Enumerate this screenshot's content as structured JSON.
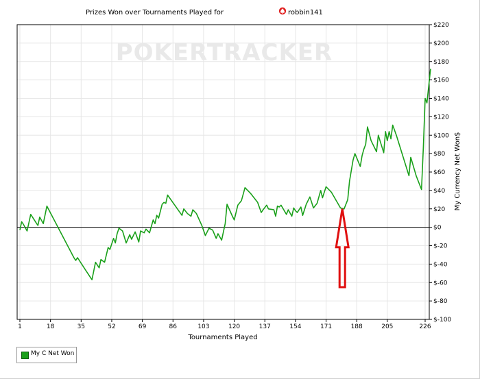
{
  "chart_data": {
    "type": "line",
    "title": "Prizes Won over Tournaments Played for",
    "player": "robbin141",
    "watermark": "POKERTRACKER",
    "xlabel": "Tournaments Played",
    "ylabel": "My Currency Net Won$",
    "xlim": [
      1,
      226
    ],
    "ylim": [
      -100,
      220
    ],
    "x_ticks": [
      1,
      18,
      35,
      52,
      69,
      86,
      103,
      120,
      137,
      154,
      171,
      188,
      205,
      226
    ],
    "y_ticks": [
      {
        "v": 220,
        "label": "$220"
      },
      {
        "v": 200,
        "label": "$200"
      },
      {
        "v": 180,
        "label": "$180"
      },
      {
        "v": 160,
        "label": "$160"
      },
      {
        "v": 140,
        "label": "$140"
      },
      {
        "v": 120,
        "label": "$120"
      },
      {
        "v": 100,
        "label": "$100"
      },
      {
        "v": 80,
        "label": "$80"
      },
      {
        "v": 60,
        "label": "$60"
      },
      {
        "v": 40,
        "label": "$40"
      },
      {
        "v": 20,
        "label": "$20"
      },
      {
        "v": 0,
        "label": "$0"
      },
      {
        "v": -20,
        "label": "$-20"
      },
      {
        "v": -40,
        "label": "$-40"
      },
      {
        "v": -60,
        "label": "$-60"
      },
      {
        "v": -80,
        "label": "$-80"
      },
      {
        "v": -100,
        "label": "$-100"
      }
    ],
    "grid": true,
    "legend": "bottom-left",
    "series": [
      {
        "name": "My C Net Won",
        "color": "#1aa01a",
        "points": [
          [
            1,
            -3
          ],
          [
            2,
            6
          ],
          [
            3,
            3
          ],
          [
            5,
            -4
          ],
          [
            7,
            14
          ],
          [
            10,
            5
          ],
          [
            11,
            2
          ],
          [
            12,
            11
          ],
          [
            14,
            4
          ],
          [
            16,
            23
          ],
          [
            31,
            -33
          ],
          [
            32,
            -36
          ],
          [
            33,
            -33
          ],
          [
            36,
            -42
          ],
          [
            41,
            -57
          ],
          [
            43,
            -38
          ],
          [
            45,
            -44
          ],
          [
            46,
            -35
          ],
          [
            48,
            -38
          ],
          [
            50,
            -22
          ],
          [
            51,
            -24
          ],
          [
            53,
            -12
          ],
          [
            54,
            -17
          ],
          [
            55,
            -7
          ],
          [
            56,
            -1
          ],
          [
            58,
            -4
          ],
          [
            60,
            -17
          ],
          [
            62,
            -8
          ],
          [
            63,
            -13
          ],
          [
            65,
            -5
          ],
          [
            67,
            -16
          ],
          [
            68,
            -4
          ],
          [
            70,
            -6
          ],
          [
            71,
            -2
          ],
          [
            73,
            -6
          ],
          [
            75,
            8
          ],
          [
            76,
            4
          ],
          [
            77,
            13
          ],
          [
            78,
            10
          ],
          [
            80,
            25
          ],
          [
            81,
            27
          ],
          [
            82,
            26
          ],
          [
            83,
            35
          ],
          [
            91,
            13
          ],
          [
            92,
            20
          ],
          [
            94,
            15
          ],
          [
            96,
            12
          ],
          [
            97,
            19
          ],
          [
            99,
            15
          ],
          [
            102,
            2
          ],
          [
            104,
            -9
          ],
          [
            106,
            -1
          ],
          [
            108,
            -3
          ],
          [
            110,
            -12
          ],
          [
            111,
            -7
          ],
          [
            113,
            -14
          ],
          [
            115,
            4
          ],
          [
            116,
            25
          ],
          [
            119,
            12
          ],
          [
            120,
            8
          ],
          [
            122,
            24
          ],
          [
            124,
            29
          ],
          [
            126,
            43
          ],
          [
            129,
            37
          ],
          [
            133,
            27
          ],
          [
            135,
            16
          ],
          [
            136,
            19
          ],
          [
            138,
            24
          ],
          [
            139,
            20
          ],
          [
            142,
            19
          ],
          [
            143,
            12
          ],
          [
            144,
            23
          ],
          [
            145,
            22
          ],
          [
            146,
            24
          ],
          [
            149,
            14
          ],
          [
            150,
            19
          ],
          [
            152,
            12
          ],
          [
            153,
            21
          ],
          [
            154,
            18
          ],
          [
            155,
            16
          ],
          [
            157,
            22
          ],
          [
            158,
            13
          ],
          [
            160,
            25
          ],
          [
            162,
            33
          ],
          [
            164,
            21
          ],
          [
            166,
            26
          ],
          [
            168,
            40
          ],
          [
            169,
            32
          ],
          [
            171,
            44
          ],
          [
            174,
            38
          ],
          [
            179,
            21
          ],
          [
            181,
            20
          ],
          [
            183,
            30
          ],
          [
            184,
            50
          ],
          [
            186,
            73
          ],
          [
            187,
            80
          ],
          [
            190,
            66
          ],
          [
            191,
            78
          ],
          [
            192,
            85
          ],
          [
            193,
            90
          ],
          [
            194,
            109
          ],
          [
            196,
            94
          ],
          [
            199,
            82
          ],
          [
            200,
            100
          ],
          [
            203,
            81
          ],
          [
            204,
            104
          ],
          [
            205,
            94
          ],
          [
            206,
            104
          ],
          [
            207,
            96
          ],
          [
            208,
            111
          ],
          [
            210,
            100
          ],
          [
            217,
            56
          ],
          [
            218,
            76
          ],
          [
            221,
            56
          ],
          [
            224,
            41
          ],
          [
            225,
            87
          ],
          [
            226,
            140
          ],
          [
            227,
            135
          ],
          [
            229,
            172
          ]
        ]
      }
    ],
    "annotations": [
      {
        "type": "up-arrow",
        "x": 180,
        "y_tip": 20,
        "y_base": -65,
        "color": "#e01010"
      }
    ]
  }
}
